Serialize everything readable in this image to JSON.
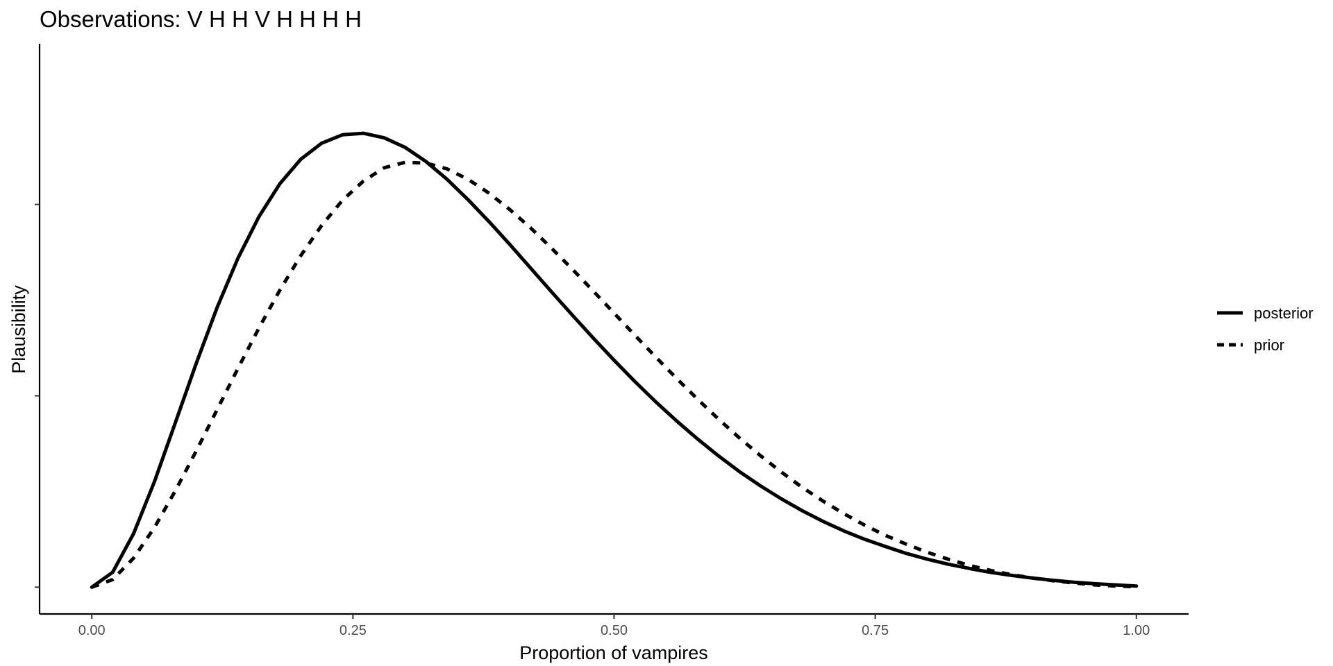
{
  "chart_data": {
    "type": "line",
    "title": "Observations: V H H V H H H H",
    "xlabel": "Proportion of vampires",
    "ylabel": "Plausibility",
    "xlim": [
      -0.05,
      1.05
    ],
    "ylim": [
      -0.07,
      1.42
    ],
    "x_ticks": [
      0,
      0.25,
      0.5,
      0.75,
      1
    ],
    "x_tick_labels": [
      "0.00",
      "0.25",
      "0.50",
      "0.75",
      "1.00"
    ],
    "y_ticks": [
      0,
      0.5,
      1
    ],
    "y_tick_labels": [
      "",
      "",
      ""
    ],
    "x": [
      0,
      0.02,
      0.04,
      0.06,
      0.08,
      0.1,
      0.12,
      0.14,
      0.16,
      0.18,
      0.2,
      0.22,
      0.24,
      0.26,
      0.28,
      0.3,
      0.32,
      0.34,
      0.36,
      0.38,
      0.4,
      0.42,
      0.44,
      0.46,
      0.48,
      0.5,
      0.52,
      0.54,
      0.56,
      0.58,
      0.6,
      0.62,
      0.64,
      0.66,
      0.68,
      0.7,
      0.72,
      0.74,
      0.76,
      0.78,
      0.8,
      0.82,
      0.84,
      0.86,
      0.88,
      0.9,
      0.92,
      0.94,
      0.96,
      0.98,
      1
    ],
    "series": [
      {
        "name": "posterior",
        "line_style": "solid",
        "values": [
          0,
          0.039,
          0.14,
          0.276,
          0.43,
          0.585,
          0.731,
          0.86,
          0.968,
          1.054,
          1.118,
          1.16,
          1.182,
          1.186,
          1.174,
          1.149,
          1.112,
          1.066,
          1.013,
          0.956,
          0.896,
          0.834,
          0.772,
          0.711,
          0.651,
          0.593,
          0.537,
          0.484,
          0.434,
          0.387,
          0.343,
          0.302,
          0.265,
          0.231,
          0.2,
          0.172,
          0.147,
          0.125,
          0.106,
          0.088,
          0.073,
          0.06,
          0.049,
          0.039,
          0.031,
          0.024,
          0.018,
          0.013,
          0.009,
          0.006,
          0.003
        ]
      },
      {
        "name": "prior",
        "line_style": "dashed",
        "values": [
          0,
          0.02,
          0.076,
          0.156,
          0.252,
          0.356,
          0.464,
          0.572,
          0.677,
          0.776,
          0.866,
          0.945,
          1.011,
          1.061,
          1.096,
          1.11,
          1.108,
          1.093,
          1.066,
          1.03,
          0.987,
          0.939,
          0.886,
          0.831,
          0.774,
          0.716,
          0.658,
          0.601,
          0.545,
          0.491,
          0.439,
          0.39,
          0.344,
          0.301,
          0.261,
          0.225,
          0.192,
          0.162,
          0.135,
          0.112,
          0.091,
          0.073,
          0.057,
          0.044,
          0.033,
          0.024,
          0.017,
          0.011,
          0.006,
          0.003,
          0.001
        ]
      }
    ],
    "legend_placement": "right",
    "grid": false
  }
}
